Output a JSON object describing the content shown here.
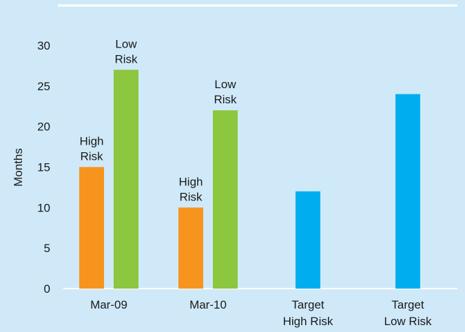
{
  "chart_data": {
    "type": "bar",
    "ylabel": "Months",
    "ylim": [
      0,
      30
    ],
    "yticks": [
      "0",
      "5",
      "10",
      "15",
      "20",
      "25",
      "30"
    ],
    "grid": false,
    "groups": [
      {
        "label": [
          "Mar-09"
        ],
        "bars": [
          {
            "value": 15,
            "label": [
              "High",
              "Risk"
            ],
            "color": "#f7941d"
          },
          {
            "value": 27,
            "label": [
              "Low",
              "Risk"
            ],
            "color": "#8dc63f"
          }
        ]
      },
      {
        "label": [
          "Mar-10"
        ],
        "bars": [
          {
            "value": 10,
            "label": [
              "High",
              "Risk"
            ],
            "color": "#f7941d"
          },
          {
            "value": 22,
            "label": [
              "Low",
              "Risk"
            ],
            "color": "#8dc63f"
          }
        ]
      },
      {
        "label": [
          "Target",
          "High Risk"
        ],
        "bars": [
          {
            "value": 12,
            "label": [],
            "color": "#00aeef"
          }
        ]
      },
      {
        "label": [
          "Target",
          "Low Risk"
        ],
        "bars": [
          {
            "value": 24,
            "label": [],
            "color": "#00aeef"
          }
        ]
      }
    ]
  },
  "colors": {
    "background": "#cfe9f8",
    "rule": "#ffffff",
    "high_risk": "#f7941d",
    "low_risk": "#8dc63f",
    "target": "#00aeef"
  }
}
